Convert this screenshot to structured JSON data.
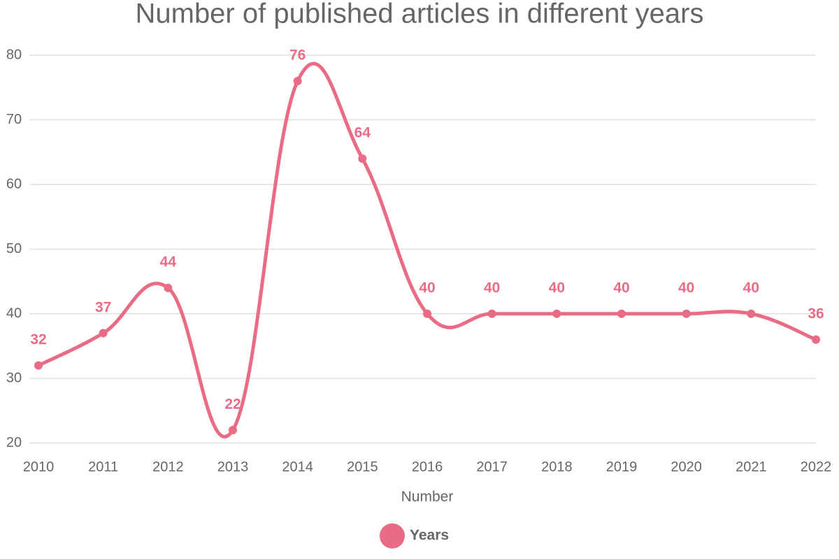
{
  "chart_data": {
    "type": "line",
    "title": "Number of published articles in different years",
    "x_label": "Number",
    "categories": [
      "2010",
      "2011",
      "2012",
      "2013",
      "2014",
      "2015",
      "2016",
      "2017",
      "2018",
      "2019",
      "2020",
      "2021",
      "2022"
    ],
    "series": [
      {
        "name": "Years",
        "color": "#ea6c84",
        "values": [
          32,
          37,
          44,
          22,
          76,
          64,
          40,
          40,
          40,
          40,
          40,
          40,
          36
        ]
      }
    ],
    "ylim": [
      20,
      80
    ],
    "yticks": [
      20,
      30,
      40,
      50,
      60,
      70,
      80
    ],
    "grid": true,
    "smooth": true,
    "legend": "bottom"
  }
}
